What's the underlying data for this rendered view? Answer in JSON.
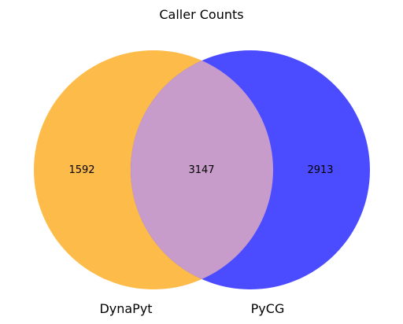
{
  "chart_data": {
    "type": "venn",
    "title": "Caller Counts",
    "sets": [
      {
        "name": "DynaPyt",
        "only_count": "1592",
        "color": "#fdbb4a"
      },
      {
        "name": "PyCG",
        "only_count": "2913",
        "color": "#4b4bff"
      }
    ],
    "intersection": {
      "count": "3147",
      "color": "#c79bca"
    }
  }
}
